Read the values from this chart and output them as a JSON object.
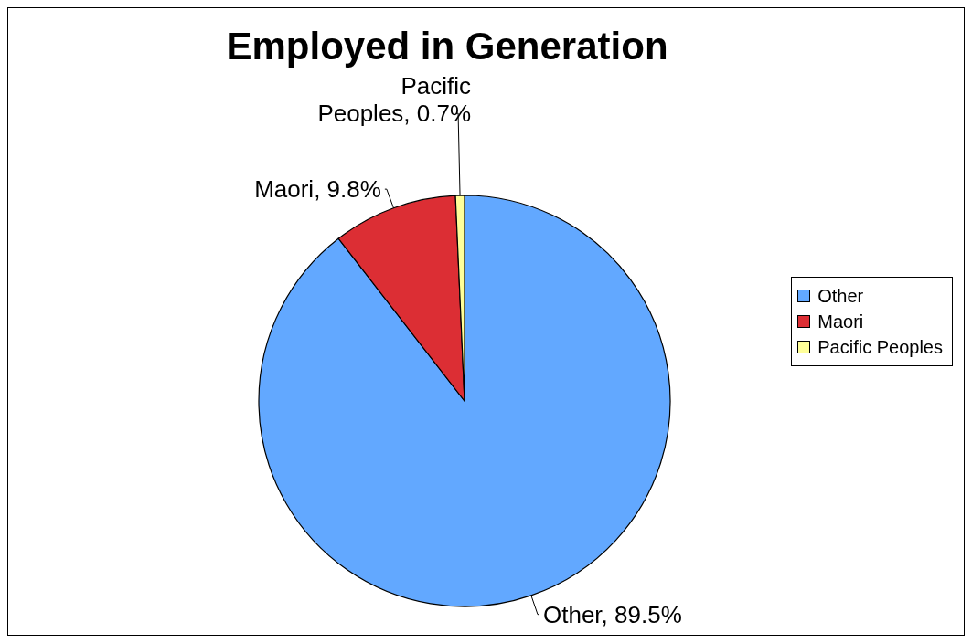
{
  "chart_data": {
    "type": "pie",
    "title": "Employed in Generation",
    "categories": [
      "Other",
      "Maori",
      "Pacific Peoples"
    ],
    "values": [
      89.5,
      9.8,
      0.7
    ],
    "colors": [
      "#62a8ff",
      "#dc2e34",
      "#ffff99"
    ],
    "value_labels": [
      "Other, 89.5%",
      "Maori, 9.8%",
      "Pacific Peoples, 0.7%"
    ],
    "legend": "right"
  }
}
